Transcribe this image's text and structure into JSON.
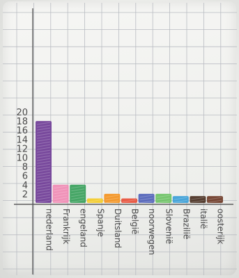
{
  "chart_data": {
    "type": "bar",
    "title": "",
    "xlabel": "",
    "ylabel": "",
    "ylim": [
      0,
      20
    ],
    "y_ticks": [
      "2",
      "4",
      "6",
      "8",
      "10",
      "12",
      "14",
      "16",
      "18",
      "20"
    ],
    "grid": true,
    "categories": [
      "nederland",
      "Frankrijk",
      "engeland",
      "Spanje",
      "Duitsland",
      "België",
      "noorwegen",
      "Slovenië",
      "Brazilië",
      "italië",
      "oosterijk"
    ],
    "values": [
      18,
      4,
      4,
      1,
      2,
      1,
      2,
      2,
      1.5,
      1.5,
      1.5
    ],
    "colors": [
      "#6f3c96",
      "#f08bb4",
      "#37a05a",
      "#f4cc28",
      "#f4931e",
      "#e8503a",
      "#5062b8",
      "#6cc264",
      "#3ca0d8",
      "#4a3022",
      "#6e3a26"
    ]
  }
}
